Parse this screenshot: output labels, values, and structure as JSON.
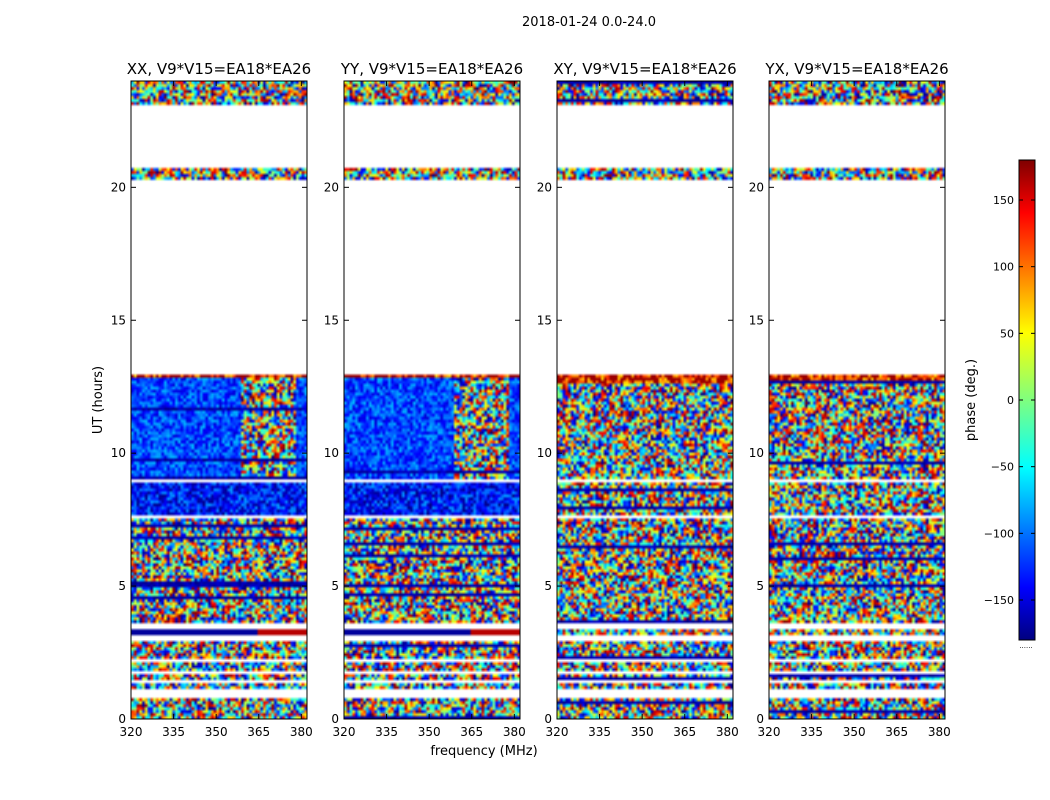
{
  "figure": {
    "suptitle": "2018-01-24 0.0-24.0",
    "xlabel": "frequency (MHz)",
    "ylabel": "UT (hours)",
    "colorbar_label": "phase (deg.)",
    "colorbar_ticks": [
      "150",
      "100",
      "50",
      "0",
      "−50",
      "−100",
      "−150"
    ],
    "colorbar_extra": "......"
  },
  "chart_data": {
    "type": "heatmap",
    "title": "2018-01-24 0.0-24.0",
    "xlabel": "frequency (MHz)",
    "ylabel": "UT (hours)",
    "xlim": [
      320,
      382
    ],
    "ylim": [
      0,
      24
    ],
    "xticks": [
      320,
      335,
      350,
      365,
      380
    ],
    "yticks": [
      0,
      5,
      10,
      15,
      20
    ],
    "xtick_labels": [
      "320",
      "335",
      "350",
      "365",
      "380"
    ],
    "ytick_labels": [
      "0",
      "5",
      "10",
      "15",
      "20"
    ],
    "colorbar": {
      "label": "phase (deg.)",
      "range": [
        -180,
        180
      ],
      "ticks": [
        150,
        100,
        50,
        0,
        -50,
        -100,
        -150
      ]
    },
    "colormap": [
      "#00007f",
      "#0000ff",
      "#007fff",
      "#00ffff",
      "#7fff7f",
      "#ffff00",
      "#ff7f00",
      "#ff0000",
      "#7f0000"
    ],
    "gap_color": "#ffffff",
    "panels": [
      {
        "title": "XX, V9*V15=EA18*EA26",
        "structured": true
      },
      {
        "title": "YY, V9*V15=EA18*EA26",
        "structured": true
      },
      {
        "title": "XY, V9*V15=EA18*EA26",
        "structured": false
      },
      {
        "title": "YX, V9*V15=EA18*EA26",
        "structured": false
      }
    ],
    "data_ut_ranges": [
      [
        0.0,
        0.75
      ],
      [
        1.1,
        1.3
      ],
      [
        1.45,
        1.7
      ],
      [
        1.8,
        2.1
      ],
      [
        2.3,
        2.95
      ],
      [
        3.1,
        3.4
      ],
      [
        3.6,
        7.55
      ],
      [
        7.65,
        8.85
      ],
      [
        9.0,
        12.95
      ],
      [
        20.25,
        20.75
      ],
      [
        23.1,
        24.0
      ]
    ],
    "white_gap_ut_ranges": [
      [
        0.75,
        1.1
      ],
      [
        1.3,
        1.45
      ],
      [
        2.95,
        3.1
      ],
      [
        8.85,
        9.0
      ],
      [
        12.95,
        20.25
      ],
      [
        20.75,
        23.1
      ]
    ]
  }
}
